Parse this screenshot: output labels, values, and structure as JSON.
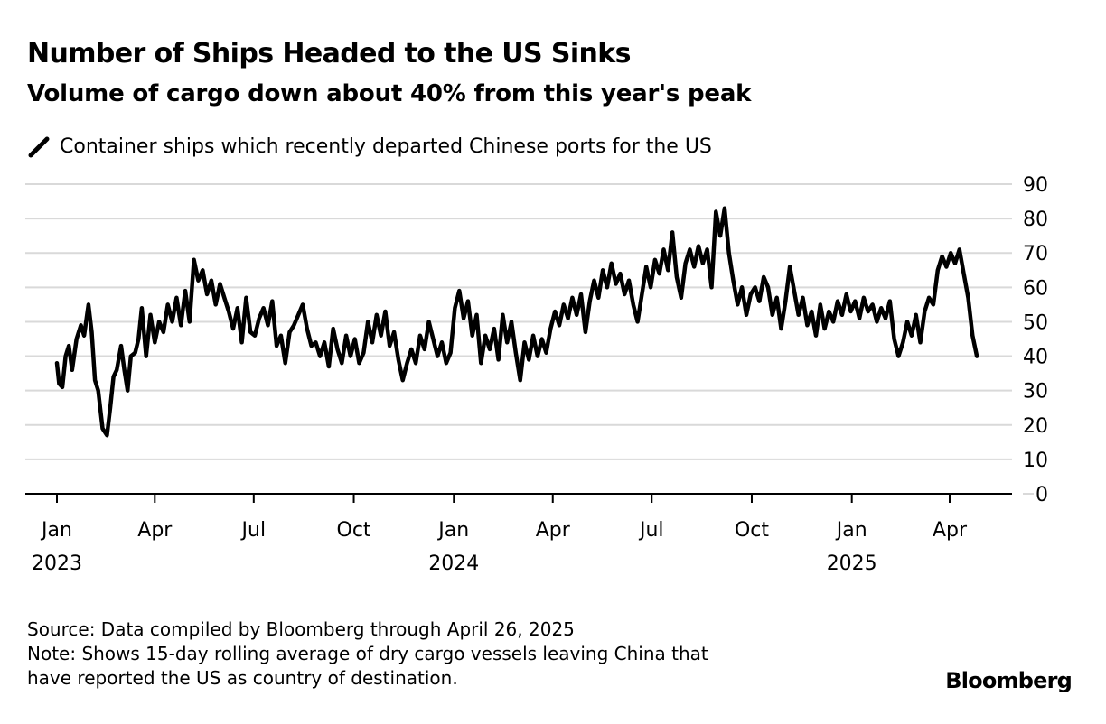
{
  "title": "Number of Ships Headed to the US Sinks",
  "subtitle": "Volume of cargo down about 40% from this year's peak",
  "footer": {
    "source": "Source: Data compiled by Bloomberg through April 26, 2025",
    "note_line1": "Note: Shows 15-day rolling average of dry cargo vessels leaving China that",
    "note_line2": "have reported the US as country of destination."
  },
  "brand": "Bloomberg",
  "colors": {
    "line": "#000000",
    "grid": "#d9d9d9",
    "axis": "#000000"
  },
  "chart_data": {
    "type": "line",
    "title": "Number of Ships Headed to the US Sinks",
    "subtitle": "Volume of cargo down about 40% from this year's peak",
    "legend_position": "top-left",
    "grid": true,
    "y_axis_position": "right",
    "ylim": [
      0,
      90
    ],
    "yticks": [
      0,
      10,
      20,
      30,
      40,
      50,
      60,
      70,
      80,
      90
    ],
    "xlim": [
      "2023-01-01",
      "2025-05-01"
    ],
    "xticks": [
      {
        "date": "2023-01-01",
        "label": "Jan",
        "year": "2023"
      },
      {
        "date": "2023-04-01",
        "label": "Apr",
        "year": ""
      },
      {
        "date": "2023-07-01",
        "label": "Jul",
        "year": ""
      },
      {
        "date": "2023-10-01",
        "label": "Oct",
        "year": ""
      },
      {
        "date": "2024-01-01",
        "label": "Jan",
        "year": "2024"
      },
      {
        "date": "2024-04-01",
        "label": "Apr",
        "year": ""
      },
      {
        "date": "2024-07-01",
        "label": "Jul",
        "year": ""
      },
      {
        "date": "2024-10-01",
        "label": "Oct",
        "year": ""
      },
      {
        "date": "2025-01-01",
        "label": "Jan",
        "year": "2025"
      },
      {
        "date": "2025-04-01",
        "label": "Apr",
        "year": ""
      }
    ],
    "series": [
      {
        "name": "Container ships which recently departed Chinese ports for the US",
        "points": [
          [
            "2023-01-01",
            38
          ],
          [
            "2023-01-03",
            32
          ],
          [
            "2023-01-06",
            31
          ],
          [
            "2023-01-09",
            40
          ],
          [
            "2023-01-12",
            43
          ],
          [
            "2023-01-15",
            36
          ],
          [
            "2023-01-19",
            45
          ],
          [
            "2023-01-23",
            49
          ],
          [
            "2023-01-26",
            46
          ],
          [
            "2023-01-30",
            55
          ],
          [
            "2023-02-02",
            47
          ],
          [
            "2023-02-05",
            33
          ],
          [
            "2023-02-08",
            30
          ],
          [
            "2023-02-12",
            19
          ],
          [
            "2023-02-16",
            17
          ],
          [
            "2023-02-19",
            25
          ],
          [
            "2023-02-22",
            34
          ],
          [
            "2023-02-25",
            36
          ],
          [
            "2023-03-01",
            43
          ],
          [
            "2023-03-04",
            36
          ],
          [
            "2023-03-07",
            30
          ],
          [
            "2023-03-10",
            40
          ],
          [
            "2023-03-14",
            41
          ],
          [
            "2023-03-17",
            45
          ],
          [
            "2023-03-20",
            54
          ],
          [
            "2023-03-24",
            40
          ],
          [
            "2023-03-28",
            52
          ],
          [
            "2023-04-01",
            44
          ],
          [
            "2023-04-05",
            50
          ],
          [
            "2023-04-09",
            47
          ],
          [
            "2023-04-13",
            55
          ],
          [
            "2023-04-17",
            50
          ],
          [
            "2023-04-21",
            57
          ],
          [
            "2023-04-25",
            49
          ],
          [
            "2023-04-29",
            59
          ],
          [
            "2023-05-03",
            50
          ],
          [
            "2023-05-07",
            68
          ],
          [
            "2023-05-11",
            62
          ],
          [
            "2023-05-15",
            65
          ],
          [
            "2023-05-19",
            58
          ],
          [
            "2023-05-23",
            62
          ],
          [
            "2023-05-27",
            55
          ],
          [
            "2023-05-31",
            61
          ],
          [
            "2023-06-04",
            57
          ],
          [
            "2023-06-08",
            53
          ],
          [
            "2023-06-12",
            48
          ],
          [
            "2023-06-16",
            54
          ],
          [
            "2023-06-20",
            44
          ],
          [
            "2023-06-24",
            57
          ],
          [
            "2023-06-28",
            47
          ],
          [
            "2023-07-02",
            46
          ],
          [
            "2023-07-06",
            51
          ],
          [
            "2023-07-10",
            54
          ],
          [
            "2023-07-14",
            49
          ],
          [
            "2023-07-18",
            56
          ],
          [
            "2023-07-22",
            43
          ],
          [
            "2023-07-26",
            46
          ],
          [
            "2023-07-30",
            38
          ],
          [
            "2023-08-03",
            47
          ],
          [
            "2023-08-07",
            49
          ],
          [
            "2023-08-11",
            52
          ],
          [
            "2023-08-15",
            55
          ],
          [
            "2023-08-19",
            48
          ],
          [
            "2023-08-23",
            43
          ],
          [
            "2023-08-27",
            44
          ],
          [
            "2023-08-31",
            40
          ],
          [
            "2023-09-04",
            44
          ],
          [
            "2023-09-08",
            37
          ],
          [
            "2023-09-12",
            48
          ],
          [
            "2023-09-16",
            42
          ],
          [
            "2023-09-20",
            38
          ],
          [
            "2023-09-24",
            46
          ],
          [
            "2023-09-28",
            40
          ],
          [
            "2023-10-02",
            45
          ],
          [
            "2023-10-06",
            38
          ],
          [
            "2023-10-10",
            41
          ],
          [
            "2023-10-14",
            50
          ],
          [
            "2023-10-18",
            44
          ],
          [
            "2023-10-22",
            52
          ],
          [
            "2023-10-26",
            46
          ],
          [
            "2023-10-30",
            53
          ],
          [
            "2023-11-03",
            43
          ],
          [
            "2023-11-07",
            47
          ],
          [
            "2023-11-11",
            39
          ],
          [
            "2023-11-15",
            33
          ],
          [
            "2023-11-19",
            38
          ],
          [
            "2023-11-23",
            42
          ],
          [
            "2023-11-27",
            38
          ],
          [
            "2023-12-01",
            46
          ],
          [
            "2023-12-05",
            42
          ],
          [
            "2023-12-09",
            50
          ],
          [
            "2023-12-13",
            45
          ],
          [
            "2023-12-17",
            40
          ],
          [
            "2023-12-21",
            44
          ],
          [
            "2023-12-25",
            38
          ],
          [
            "2023-12-29",
            41
          ],
          [
            "2024-01-02",
            54
          ],
          [
            "2024-01-06",
            59
          ],
          [
            "2024-01-10",
            51
          ],
          [
            "2024-01-14",
            56
          ],
          [
            "2024-01-18",
            46
          ],
          [
            "2024-01-22",
            52
          ],
          [
            "2024-01-26",
            38
          ],
          [
            "2024-01-30",
            46
          ],
          [
            "2024-02-03",
            42
          ],
          [
            "2024-02-07",
            48
          ],
          [
            "2024-02-11",
            39
          ],
          [
            "2024-02-15",
            52
          ],
          [
            "2024-02-19",
            44
          ],
          [
            "2024-02-23",
            50
          ],
          [
            "2024-02-27",
            41
          ],
          [
            "2024-03-02",
            33
          ],
          [
            "2024-03-06",
            44
          ],
          [
            "2024-03-10",
            39
          ],
          [
            "2024-03-14",
            46
          ],
          [
            "2024-03-18",
            40
          ],
          [
            "2024-03-22",
            45
          ],
          [
            "2024-03-26",
            41
          ],
          [
            "2024-03-30",
            48
          ],
          [
            "2024-04-03",
            53
          ],
          [
            "2024-04-07",
            49
          ],
          [
            "2024-04-11",
            55
          ],
          [
            "2024-04-15",
            51
          ],
          [
            "2024-04-19",
            57
          ],
          [
            "2024-04-23",
            52
          ],
          [
            "2024-04-27",
            58
          ],
          [
            "2024-05-01",
            47
          ],
          [
            "2024-05-05",
            56
          ],
          [
            "2024-05-09",
            62
          ],
          [
            "2024-05-13",
            57
          ],
          [
            "2024-05-17",
            65
          ],
          [
            "2024-05-21",
            60
          ],
          [
            "2024-05-25",
            67
          ],
          [
            "2024-05-29",
            61
          ],
          [
            "2024-06-02",
            64
          ],
          [
            "2024-06-06",
            58
          ],
          [
            "2024-06-10",
            62
          ],
          [
            "2024-06-14",
            55
          ],
          [
            "2024-06-18",
            50
          ],
          [
            "2024-06-22",
            58
          ],
          [
            "2024-06-26",
            66
          ],
          [
            "2024-06-30",
            60
          ],
          [
            "2024-07-04",
            68
          ],
          [
            "2024-07-08",
            64
          ],
          [
            "2024-07-12",
            71
          ],
          [
            "2024-07-16",
            65
          ],
          [
            "2024-07-20",
            76
          ],
          [
            "2024-07-24",
            63
          ],
          [
            "2024-07-28",
            57
          ],
          [
            "2024-08-01",
            67
          ],
          [
            "2024-08-05",
            71
          ],
          [
            "2024-08-09",
            66
          ],
          [
            "2024-08-13",
            72
          ],
          [
            "2024-08-17",
            67
          ],
          [
            "2024-08-21",
            71
          ],
          [
            "2024-08-25",
            60
          ],
          [
            "2024-08-29",
            82
          ],
          [
            "2024-09-02",
            75
          ],
          [
            "2024-09-06",
            83
          ],
          [
            "2024-09-10",
            70
          ],
          [
            "2024-09-14",
            62
          ],
          [
            "2024-09-18",
            55
          ],
          [
            "2024-09-22",
            60
          ],
          [
            "2024-09-26",
            52
          ],
          [
            "2024-09-30",
            58
          ],
          [
            "2024-10-04",
            60
          ],
          [
            "2024-10-08",
            56
          ],
          [
            "2024-10-12",
            63
          ],
          [
            "2024-10-16",
            60
          ],
          [
            "2024-10-20",
            52
          ],
          [
            "2024-10-24",
            57
          ],
          [
            "2024-10-28",
            48
          ],
          [
            "2024-11-01",
            56
          ],
          [
            "2024-11-05",
            66
          ],
          [
            "2024-11-09",
            59
          ],
          [
            "2024-11-13",
            52
          ],
          [
            "2024-11-17",
            57
          ],
          [
            "2024-11-21",
            49
          ],
          [
            "2024-11-25",
            53
          ],
          [
            "2024-11-29",
            46
          ],
          [
            "2024-12-03",
            55
          ],
          [
            "2024-12-07",
            48
          ],
          [
            "2024-12-11",
            53
          ],
          [
            "2024-12-15",
            50
          ],
          [
            "2024-12-19",
            56
          ],
          [
            "2024-12-23",
            52
          ],
          [
            "2024-12-27",
            58
          ],
          [
            "2024-12-31",
            53
          ],
          [
            "2025-01-04",
            56
          ],
          [
            "2025-01-08",
            51
          ],
          [
            "2025-01-12",
            57
          ],
          [
            "2025-01-16",
            53
          ],
          [
            "2025-01-20",
            55
          ],
          [
            "2025-01-24",
            50
          ],
          [
            "2025-01-28",
            54
          ],
          [
            "2025-02-01",
            51
          ],
          [
            "2025-02-05",
            56
          ],
          [
            "2025-02-09",
            45
          ],
          [
            "2025-02-13",
            40
          ],
          [
            "2025-02-17",
            44
          ],
          [
            "2025-02-21",
            50
          ],
          [
            "2025-02-25",
            46
          ],
          [
            "2025-03-01",
            52
          ],
          [
            "2025-03-05",
            44
          ],
          [
            "2025-03-09",
            53
          ],
          [
            "2025-03-13",
            57
          ],
          [
            "2025-03-17",
            55
          ],
          [
            "2025-03-21",
            65
          ],
          [
            "2025-03-25",
            69
          ],
          [
            "2025-03-29",
            66
          ],
          [
            "2025-04-02",
            70
          ],
          [
            "2025-04-06",
            67
          ],
          [
            "2025-04-10",
            71
          ],
          [
            "2025-04-14",
            64
          ],
          [
            "2025-04-18",
            57
          ],
          [
            "2025-04-22",
            46
          ],
          [
            "2025-04-26",
            40
          ]
        ]
      }
    ]
  }
}
